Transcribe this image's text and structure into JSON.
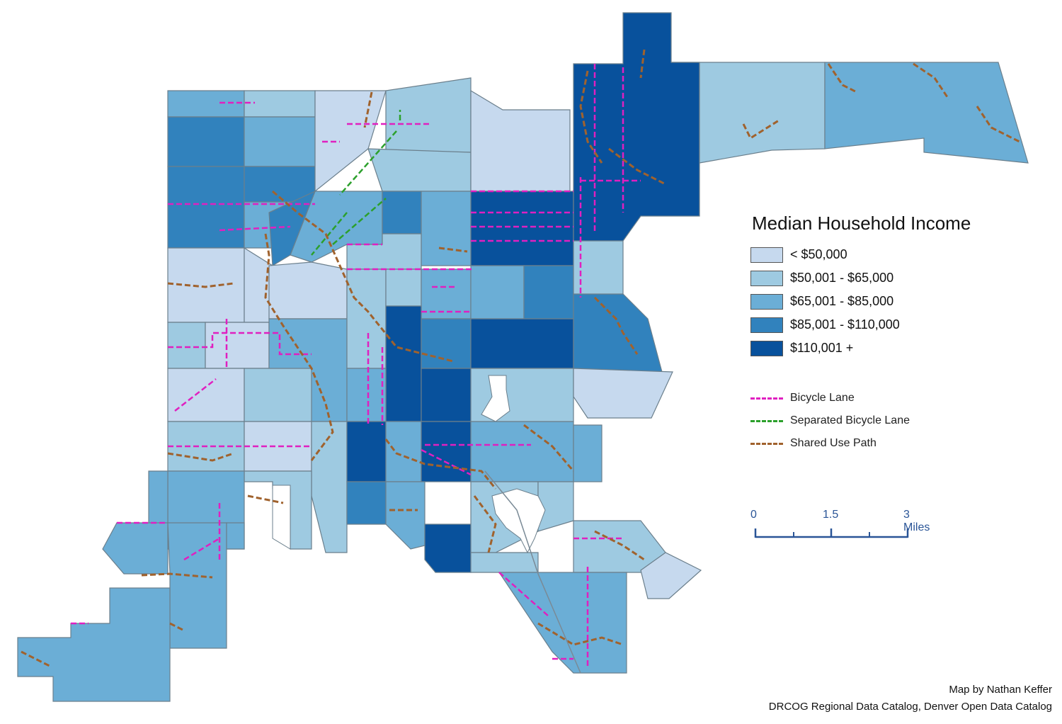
{
  "legend": {
    "title": "Median Household Income",
    "classes": [
      {
        "label": "< $50,000",
        "color": "#c6d9ee"
      },
      {
        "label": "$50,001 - $65,000",
        "color": "#9ecae1"
      },
      {
        "label": "$65,001 - $85,000",
        "color": "#6baed6"
      },
      {
        "label": "$85,001 - $110,000",
        "color": "#3182bd"
      },
      {
        "label": "$110,001 +",
        "color": "#08519c"
      }
    ],
    "lines": [
      {
        "label": "Bicycle Lane",
        "color": "#e020c0"
      },
      {
        "label": "Separated Bicycle Lane",
        "color": "#2ca02c"
      },
      {
        "label": "Shared Use Path",
        "color": "#a0622d"
      }
    ]
  },
  "scale": {
    "labels": [
      "0",
      "1.5",
      "3 Miles"
    ],
    "color": "#2a5597"
  },
  "credits": {
    "author": "Map by Nathan Keffer",
    "sources": "DRCOG Regional Data Catalog, Denver Open Data Catalog"
  },
  "colors": {
    "boundary": "#6b7f8c",
    "background": "#ffffff"
  }
}
